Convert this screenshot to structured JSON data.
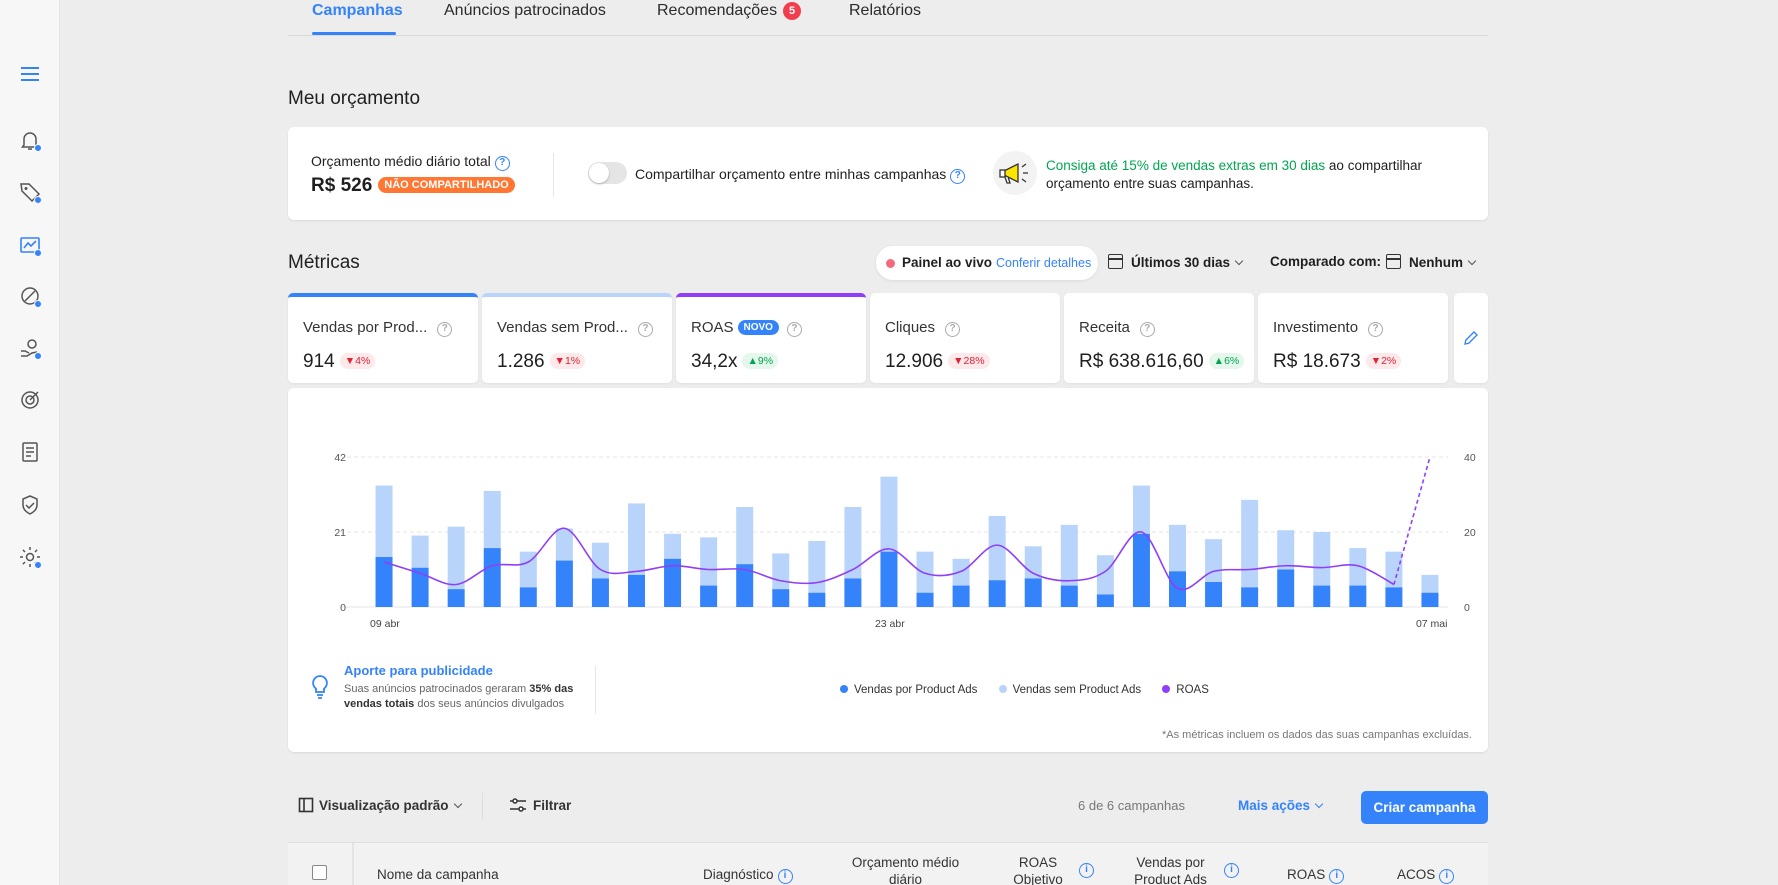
{
  "tabs": [
    {
      "label": "Campanhas",
      "active": true
    },
    {
      "label": "Anúncios patrocinados",
      "active": false
    },
    {
      "label": "Recomendações",
      "badge": "5"
    },
    {
      "label": "Relatórios"
    }
  ],
  "budget": {
    "section_title": "Meu orçamento",
    "label": "Orçamento médio diário total",
    "value": "R$ 526",
    "badge": "NÃO COMPARTILHADO",
    "toggle_label": "Compartilhar orçamento entre minhas campanhas",
    "toggle_on": false,
    "promo_highlight": "Consiga até 15% de vendas extras em 30 dias",
    "promo_rest": " ao compartilhar orçamento entre suas campanhas."
  },
  "metrics": {
    "section_title": "Métricas",
    "live_label": "Painel ao vivo",
    "live_link": "Conferir detalhes",
    "range_label": "Últimos 30 dias",
    "compare_label": "Comparado com:",
    "compare_value": "Nenhum",
    "cards": [
      {
        "title": "Vendas por Prod...",
        "value": "914",
        "delta": "4%",
        "direction": "down"
      },
      {
        "title": "Vendas sem Prod...",
        "value": "1.286",
        "delta": "1%",
        "direction": "down"
      },
      {
        "title": "ROAS",
        "tag": "NOVO",
        "value": "34,2x",
        "delta": "9%",
        "direction": "up"
      },
      {
        "title": "Cliques",
        "value": "12.906",
        "delta": "28%",
        "direction": "down"
      },
      {
        "title": "Receita",
        "value": "R$ 638.616,60",
        "delta": "6%",
        "direction": "up"
      },
      {
        "title": "Investimento",
        "value": "R$ 18.673",
        "delta": "2%",
        "direction": "down"
      }
    ]
  },
  "chart_data": {
    "type": "bar",
    "x_tick_labels": [
      "09 abr",
      "23 abr",
      "07 mai"
    ],
    "left_axis": {
      "ticks": [
        "42",
        "21",
        "0"
      ],
      "ylim": [
        0,
        42
      ]
    },
    "right_axis": {
      "ticks": [
        "40",
        "20",
        "0"
      ],
      "ylim": [
        0,
        40
      ]
    },
    "stacked": true,
    "grid": true,
    "series": [
      {
        "name": "Vendas por Product Ads",
        "type": "bar",
        "color": "#3483fa",
        "values": [
          14,
          11,
          5,
          16.5,
          5.5,
          13,
          8,
          9,
          13.5,
          6,
          12,
          5,
          4,
          8,
          15.5,
          4,
          6,
          7.5,
          8,
          6,
          3.5,
          20.5,
          10,
          7,
          5.5,
          10.5,
          6,
          6,
          5.5,
          4
        ]
      },
      {
        "name": "Vendas sem Product Ads",
        "type": "bar",
        "color": "#b9d4fb",
        "values": [
          20,
          9,
          17.5,
          16,
          10,
          9,
          10,
          20,
          7,
          13.5,
          16,
          10,
          14.5,
          20,
          21,
          11.5,
          7.5,
          18,
          9,
          17,
          11,
          13.5,
          13,
          12,
          24.5,
          11,
          15,
          10.5,
          10,
          5
        ]
      },
      {
        "name": "ROAS",
        "type": "line",
        "axis": "right",
        "color": "#8f3ff7",
        "values": [
          12,
          9,
          6,
          11,
          12,
          21,
          10,
          9.5,
          11,
          10,
          10,
          7,
          6.5,
          10,
          15.5,
          9,
          9.5,
          16.5,
          9,
          7,
          9.5,
          20,
          5,
          9.5,
          10,
          11,
          10.5,
          11,
          6,
          40
        ],
        "dashed_from_index": 28
      }
    ]
  },
  "tip": {
    "title": "Aporte para publicidade",
    "text_1": "Suas anúncios patrocinados geraram ",
    "bold_1": "35% das vendas totais",
    "text_2": " dos seus anúncios divulgados"
  },
  "footnote": "*As métricas incluem os dados das suas campanhas excluídas.",
  "toolbar": {
    "view_label": "Visualização padrão",
    "filter_label": "Filtrar",
    "count": "6 de 6 campanhas",
    "more_actions": "Mais ações",
    "create_button": "Criar campanha"
  },
  "table_headers": [
    "Nome da campanha",
    "Diagnóstico",
    "Orçamento médio diário",
    "ROAS Objetivo",
    "Vendas por Product Ads",
    "ROAS",
    "ACOS"
  ],
  "colors": {
    "accent": "#3483fa",
    "light_accent": "#b9d4fb",
    "purple": "#8f3ff7",
    "orange": "#ff7733",
    "green": "#00a650",
    "red": "#e02235"
  }
}
